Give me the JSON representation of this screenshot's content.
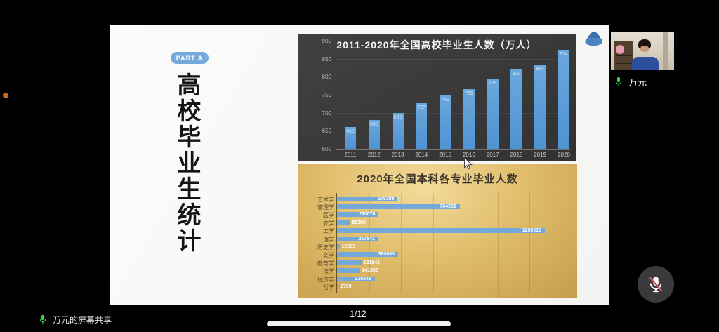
{
  "slide": {
    "part_badge": "PART A",
    "vertical_title": "高校毕业生统计"
  },
  "participant": {
    "name": "万元"
  },
  "footer": {
    "share_status": "万元的屏幕共享",
    "page_indicator": "1/12"
  },
  "colors": {
    "bar_blue": "#5b9bd5",
    "badge_blue": "#74aadd",
    "panel_dark": "#3a3a3a",
    "panel_gold": "#ddbb66",
    "mic_green": "#3ecf52",
    "mute_red": "#d94f4f"
  },
  "chart_data": [
    {
      "type": "bar",
      "title": "2011-2020年全国高校毕业生人数（万人）",
      "categories": [
        "2011",
        "2012",
        "2013",
        "2014",
        "2015",
        "2016",
        "2017",
        "2018",
        "2019",
        "2020"
      ],
      "values": [
        660,
        680,
        699,
        727,
        749,
        765,
        795,
        820,
        834,
        874
      ],
      "ylim": [
        600,
        900
      ],
      "yticks": [
        600,
        650,
        700,
        750,
        800,
        850,
        900
      ],
      "grid": true,
      "legend": false,
      "value_labels": true
    },
    {
      "type": "bar",
      "orientation": "horizontal",
      "title": "2020年全国本科各专业毕业人数",
      "categories": [
        "艺术学",
        "管理学",
        "医学",
        "农学",
        "工学",
        "理学",
        "历史学",
        "文学",
        "教育学",
        "法学",
        "经济学",
        "哲学"
      ],
      "values": [
        378188,
        764582,
        260070,
        80360,
        1295015,
        257641,
        16033,
        380089,
        151841,
        141838,
        235346,
        2799
      ],
      "xlim": [
        0,
        1400000
      ],
      "grid_step": 200000,
      "grid": true,
      "legend": false,
      "value_labels": true
    }
  ]
}
